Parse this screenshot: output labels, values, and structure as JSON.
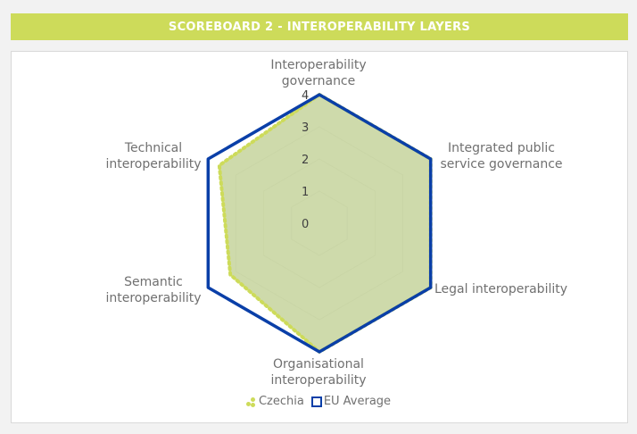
{
  "banner": {
    "title": "SCOREBOARD 2 - INTEROPERABILITY LAYERS"
  },
  "colors": {
    "banner_bg": "#cddb5a",
    "czechia_fill": "#c6d39c",
    "czechia_line": "#cddb5a",
    "eu_line": "#0a3fa8",
    "grid": "#d9d9d9"
  },
  "chart_data": {
    "type": "radar",
    "title": "",
    "axes": [
      "Interoperability governance",
      "Integrated public service governance",
      "Legal interoperability",
      "Organisational interoperability",
      "Semantic interoperability",
      "Technical interoperability"
    ],
    "axis_label_lines": [
      [
        "Interoperability",
        "governance"
      ],
      [
        "Integrated public",
        "service governance"
      ],
      [
        "Legal interoperability"
      ],
      [
        "Organisational",
        "interoperability"
      ],
      [
        "Semantic",
        "interoperability"
      ],
      [
        "Technical",
        "interoperability"
      ]
    ],
    "rlim": [
      0,
      4
    ],
    "ticks": [
      "0",
      "1",
      "2",
      "3",
      "4"
    ],
    "grid": true,
    "legend_position": "bottom",
    "series": [
      {
        "name": "Czechia",
        "values": [
          4,
          4,
          4,
          4,
          3.2,
          3.6
        ]
      },
      {
        "name": "EU Average",
        "values": [
          4,
          4,
          4,
          4,
          4,
          4
        ]
      }
    ]
  },
  "legend": {
    "items": [
      "Czechia",
      "EU Average"
    ]
  }
}
